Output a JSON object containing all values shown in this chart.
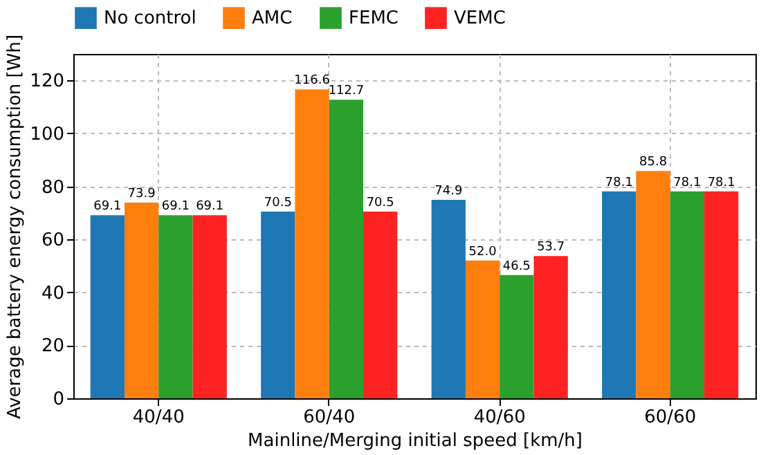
{
  "chart_data": {
    "type": "bar",
    "xlabel": "Mainline/Merging initial speed [km/h]",
    "ylabel": "Average battery energy consumption [Wh]",
    "categories": [
      "40/40",
      "60/40",
      "40/60",
      "60/60"
    ],
    "series": [
      {
        "name": "No control",
        "color": "#1f77b4",
        "values": [
          69.1,
          70.5,
          74.9,
          78.1
        ]
      },
      {
        "name": "AMC",
        "color": "#ff7f0e",
        "values": [
          73.9,
          116.6,
          52.0,
          85.8
        ]
      },
      {
        "name": "FEMC",
        "color": "#2ca02c",
        "values": [
          69.1,
          112.7,
          46.5,
          78.1
        ]
      },
      {
        "name": "VEMC",
        "color": "#ff2222",
        "values": [
          69.1,
          70.5,
          53.7,
          78.1
        ]
      }
    ],
    "value_labels": [
      [
        "69.1",
        "70.5",
        "74.9",
        "78.1"
      ],
      [
        "73.9",
        "116.6",
        "52.0",
        "85.8"
      ],
      [
        "69.1",
        "112.7",
        "46.5",
        "78.1"
      ],
      [
        "69.1",
        "70.5",
        "53.7",
        "78.1"
      ]
    ],
    "ylim": [
      0,
      130
    ],
    "yticks": [
      0,
      20,
      40,
      60,
      80,
      100,
      120
    ],
    "grid": true,
    "legend": "top"
  }
}
